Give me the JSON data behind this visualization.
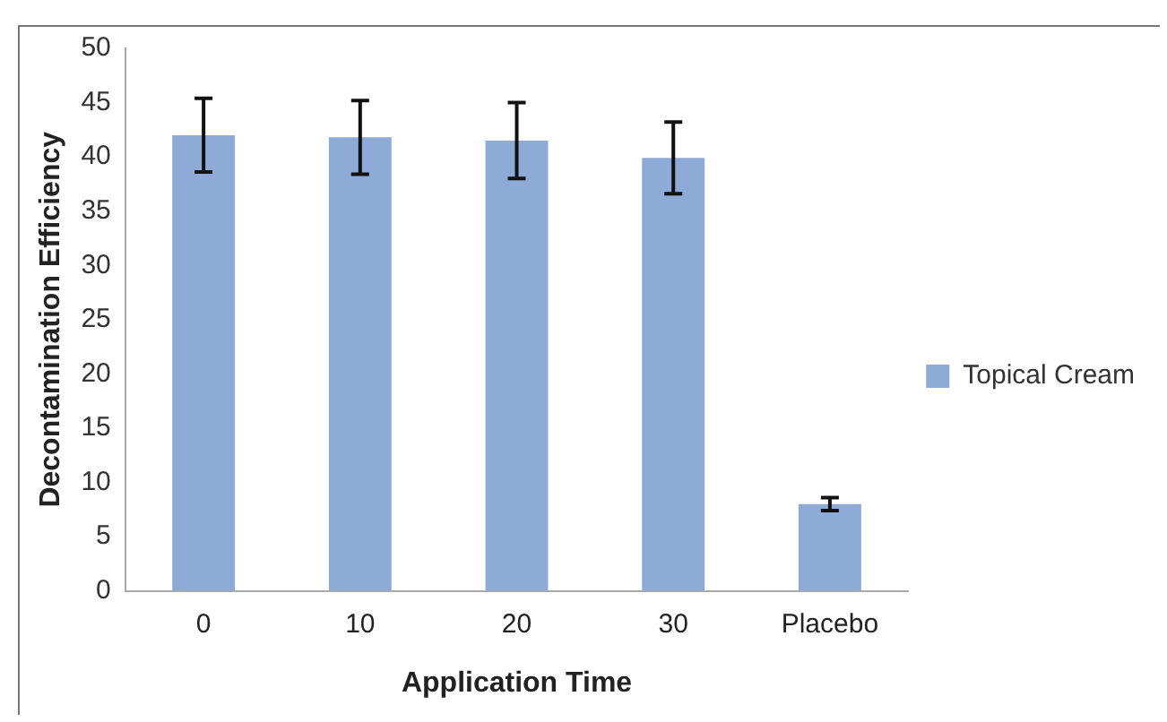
{
  "chart_data": {
    "type": "bar",
    "xlabel": "Application Time",
    "ylabel": "Decontamination Efficiency",
    "categories": [
      "0",
      "10",
      "20",
      "30",
      "Placebo"
    ],
    "series": [
      {
        "name": "Topical Cream",
        "color": "#8eaad6",
        "values": [
          42,
          41.8,
          41.5,
          39.9,
          8
        ],
        "errors": [
          3.4,
          3.4,
          3.5,
          3.3,
          0.6
        ]
      }
    ],
    "ylim": [
      0,
      50
    ],
    "yticks": [
      0,
      5,
      10,
      15,
      20,
      25,
      30,
      35,
      40,
      45,
      50
    ],
    "grid": false,
    "legend": "right"
  }
}
